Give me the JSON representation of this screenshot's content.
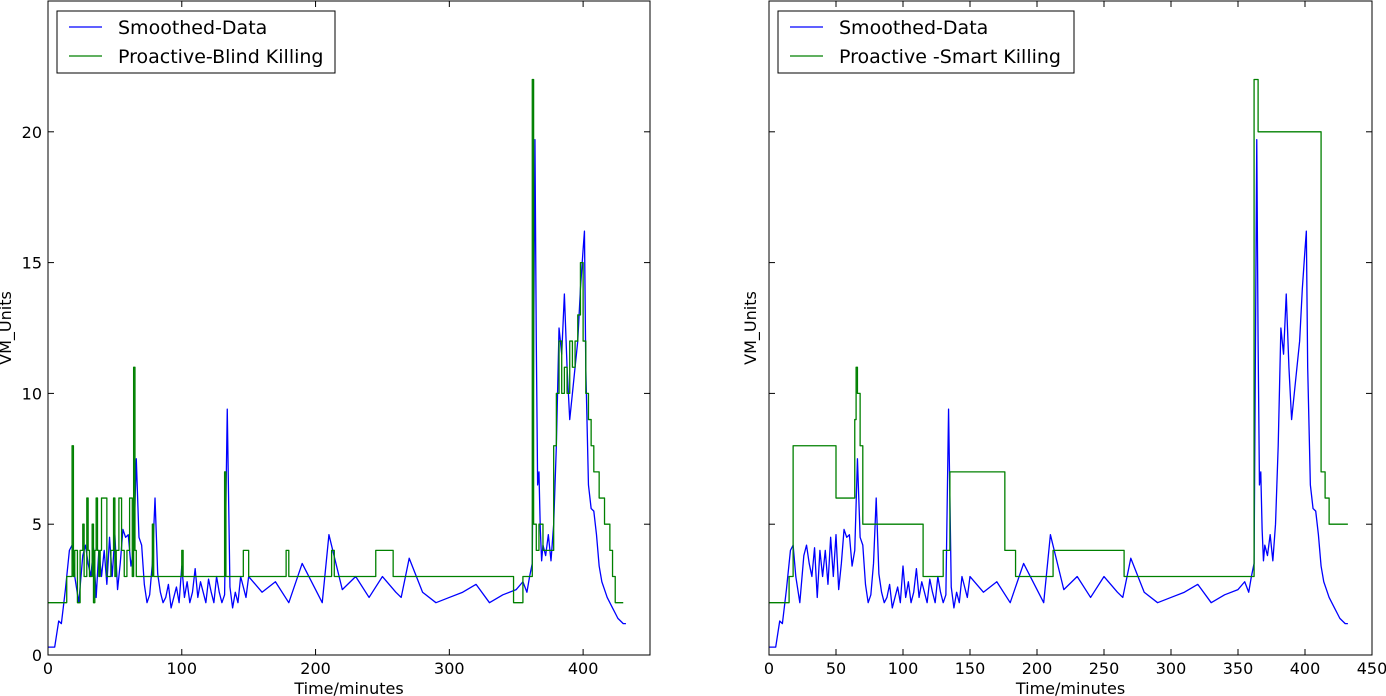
{
  "chart_data": [
    {
      "type": "line",
      "xlabel": "Time/minutes",
      "ylabel": "VM_Units",
      "xlim": [
        0,
        450
      ],
      "ylim": [
        0,
        25
      ],
      "xticks": [
        0,
        100,
        200,
        300,
        400
      ],
      "yticks": [
        0,
        5,
        10,
        15,
        20
      ],
      "show_y_tick_labels": true,
      "legend": "top-left",
      "grid": false,
      "series": [
        {
          "name": "Smoothed-Data",
          "color": "#0000ff",
          "x": [
            0,
            5,
            8,
            10,
            13,
            16,
            18,
            20,
            23,
            26,
            28,
            30,
            32,
            34,
            36,
            38,
            40,
            42,
            44,
            46,
            48,
            50,
            52,
            54,
            56,
            58,
            60,
            62,
            64,
            66,
            68,
            70,
            72,
            74,
            76,
            78,
            80,
            82,
            84,
            86,
            88,
            90,
            92,
            94,
            96,
            98,
            100,
            102,
            104,
            106,
            108,
            110,
            112,
            114,
            116,
            118,
            120,
            122,
            124,
            126,
            128,
            130,
            132,
            134,
            136,
            138,
            140,
            142,
            144,
            146,
            148,
            150,
            160,
            170,
            180,
            190,
            200,
            205,
            210,
            220,
            230,
            240,
            250,
            260,
            264,
            270,
            280,
            290,
            300,
            310,
            320,
            330,
            340,
            350,
            355,
            358,
            360,
            362,
            364,
            365,
            366,
            367,
            368,
            369,
            370,
            372,
            374,
            376,
            378,
            380,
            382,
            384,
            386,
            388,
            390,
            392,
            394,
            396,
            398,
            400,
            401,
            402,
            404,
            406,
            408,
            410,
            412,
            414,
            416,
            418,
            420,
            422,
            424,
            426,
            428,
            430,
            432
          ],
          "y": [
            0.3,
            0.3,
            1.3,
            1.2,
            2.5,
            4.0,
            4.2,
            3.0,
            2.0,
            3.8,
            4.2,
            3.5,
            3.0,
            4.1,
            2.2,
            4.0,
            3.0,
            4.0,
            2.7,
            4.5,
            3.0,
            4.6,
            2.5,
            3.5,
            4.8,
            4.5,
            4.6,
            3.4,
            4.0,
            7.5,
            4.5,
            4.2,
            2.7,
            2.0,
            2.3,
            3.5,
            6.0,
            3.1,
            2.4,
            2.0,
            2.2,
            2.7,
            1.8,
            2.2,
            2.6,
            2.0,
            3.4,
            2.2,
            2.8,
            2.0,
            2.4,
            3.3,
            2.2,
            2.8,
            2.4,
            2.0,
            2.9,
            2.4,
            2.0,
            3.0,
            2.4,
            2.0,
            2.3,
            9.4,
            2.6,
            1.8,
            2.4,
            2.0,
            3.0,
            2.6,
            2.2,
            3.0,
            2.4,
            2.8,
            2.0,
            3.5,
            2.5,
            2.0,
            4.6,
            2.5,
            3.0,
            2.2,
            3.0,
            2.4,
            2.2,
            3.7,
            2.4,
            2.0,
            2.2,
            2.4,
            2.7,
            2.0,
            2.3,
            2.5,
            2.8,
            2.4,
            3.0,
            3.5,
            19.7,
            12.0,
            6.5,
            7.0,
            4.8,
            3.6,
            4.2,
            3.8,
            4.6,
            3.6,
            5.0,
            8.0,
            12.5,
            11.5,
            13.8,
            11.0,
            9.0,
            10.0,
            11.0,
            12.0,
            14.0,
            15.5,
            16.2,
            11.0,
            6.5,
            5.6,
            5.5,
            4.6,
            3.4,
            2.8,
            2.5,
            2.2,
            2.0,
            1.8,
            1.6,
            1.4,
            1.3,
            1.2,
            1.2
          ]
        },
        {
          "name": "Proactive-Blind Killing",
          "color": "#008000",
          "x": [
            0,
            14,
            14,
            18,
            18,
            19,
            19,
            20,
            20,
            22,
            22,
            24,
            24,
            26,
            26,
            27,
            27,
            29,
            29,
            30,
            30,
            31,
            31,
            33,
            33,
            34,
            34,
            35,
            35,
            36,
            36,
            37,
            37,
            38,
            38,
            39,
            39,
            40,
            40,
            44,
            44,
            47,
            47,
            49,
            49,
            50,
            50,
            51,
            51,
            53,
            53,
            55,
            55,
            57,
            57,
            59,
            59,
            61,
            61,
            63,
            63,
            64,
            64,
            65,
            65,
            66,
            66,
            68,
            68,
            69,
            69,
            78,
            78,
            79,
            79,
            80,
            80,
            100,
            100,
            101,
            101,
            102,
            102,
            132,
            132,
            133,
            133,
            134,
            134,
            146,
            146,
            150,
            150,
            178,
            178,
            180,
            180,
            212,
            212,
            214,
            214,
            245,
            245,
            258,
            258,
            348,
            348,
            355,
            355,
            362,
            362,
            363,
            363,
            365,
            365,
            367,
            367,
            370,
            370,
            378,
            378,
            380,
            380,
            382,
            382,
            384,
            384,
            386,
            386,
            388,
            388,
            390,
            390,
            392,
            392,
            394,
            394,
            396,
            396,
            398,
            398,
            400,
            400,
            402,
            402,
            404,
            404,
            406,
            406,
            408,
            408,
            412,
            412,
            416,
            416,
            420,
            420,
            422,
            422,
            424,
            424,
            426,
            426,
            430,
            430
          ],
          "y": [
            2,
            2,
            3,
            3,
            8,
            8,
            3,
            3,
            4,
            4,
            2,
            2,
            4,
            4,
            5,
            5,
            3,
            3,
            6,
            6,
            4,
            4,
            3,
            3,
            5,
            5,
            2,
            2,
            4,
            4,
            6,
            6,
            4,
            4,
            3,
            3,
            4,
            4,
            6,
            6,
            3,
            3,
            4,
            4,
            6,
            6,
            3,
            3,
            4,
            4,
            6,
            6,
            4,
            4,
            3,
            3,
            4,
            4,
            6,
            6,
            3,
            3,
            11,
            11,
            4,
            4,
            3,
            3,
            3,
            3,
            3,
            3,
            5,
            5,
            3,
            3,
            3,
            3,
            4,
            4,
            3,
            3,
            3,
            3,
            7,
            7,
            3,
            3,
            3,
            3,
            4,
            4,
            3,
            3,
            4,
            4,
            3,
            3,
            4,
            4,
            3,
            3,
            4,
            4,
            3,
            3,
            2,
            2,
            3,
            3,
            22,
            22,
            5,
            5,
            4,
            4,
            5,
            5,
            4,
            4,
            8,
            8,
            10,
            10,
            12,
            12,
            10,
            10,
            11,
            11,
            10,
            10,
            12,
            12,
            11,
            11,
            12,
            12,
            13,
            13,
            15,
            15,
            12,
            12,
            10,
            10,
            9,
            9,
            8,
            8,
            7,
            7,
            6,
            6,
            5,
            5,
            4,
            4,
            3,
            3,
            2,
            2,
            2,
            2,
            2
          ]
        }
      ]
    },
    {
      "type": "line",
      "xlabel": "Time/minutes",
      "ylabel": "VM_Units",
      "xlim": [
        0,
        450
      ],
      "ylim": [
        0,
        25
      ],
      "xticks": [
        0,
        50,
        100,
        150,
        200,
        250,
        300,
        350,
        400,
        450
      ],
      "yticks": [
        0,
        5,
        10,
        15,
        20
      ],
      "show_y_tick_labels": false,
      "legend": "top-left",
      "grid": false,
      "series": [
        {
          "name": "Smoothed-Data",
          "color": "#0000ff",
          "x": [
            0,
            5,
            8,
            10,
            13,
            16,
            18,
            20,
            23,
            26,
            28,
            30,
            32,
            34,
            36,
            38,
            40,
            42,
            44,
            46,
            48,
            50,
            52,
            54,
            56,
            58,
            60,
            62,
            64,
            66,
            68,
            70,
            72,
            74,
            76,
            78,
            80,
            82,
            84,
            86,
            88,
            90,
            92,
            94,
            96,
            98,
            100,
            102,
            104,
            106,
            108,
            110,
            112,
            114,
            116,
            118,
            120,
            122,
            124,
            126,
            128,
            130,
            132,
            134,
            136,
            138,
            140,
            142,
            144,
            146,
            148,
            150,
            160,
            170,
            180,
            190,
            200,
            205,
            210,
            220,
            230,
            240,
            250,
            260,
            264,
            270,
            280,
            290,
            300,
            310,
            320,
            330,
            340,
            350,
            355,
            358,
            360,
            362,
            364,
            365,
            366,
            367,
            368,
            369,
            370,
            372,
            374,
            376,
            378,
            380,
            382,
            384,
            386,
            388,
            390,
            392,
            394,
            396,
            398,
            400,
            401,
            402,
            404,
            406,
            408,
            410,
            412,
            414,
            416,
            418,
            420,
            422,
            424,
            426,
            428,
            430,
            432
          ],
          "y": [
            0.3,
            0.3,
            1.3,
            1.2,
            2.5,
            4.0,
            4.2,
            3.0,
            2.0,
            3.8,
            4.2,
            3.5,
            3.0,
            4.1,
            2.2,
            4.0,
            3.0,
            4.0,
            2.7,
            4.5,
            3.0,
            4.6,
            2.5,
            3.5,
            4.8,
            4.5,
            4.6,
            3.4,
            4.0,
            7.5,
            4.5,
            4.2,
            2.7,
            2.0,
            2.3,
            3.5,
            6.0,
            3.1,
            2.4,
            2.0,
            2.2,
            2.7,
            1.8,
            2.2,
            2.6,
            2.0,
            3.4,
            2.2,
            2.8,
            2.0,
            2.4,
            3.3,
            2.2,
            2.8,
            2.4,
            2.0,
            2.9,
            2.4,
            2.0,
            3.0,
            2.4,
            2.0,
            2.3,
            9.4,
            2.6,
            1.8,
            2.4,
            2.0,
            3.0,
            2.6,
            2.2,
            3.0,
            2.4,
            2.8,
            2.0,
            3.5,
            2.5,
            2.0,
            4.6,
            2.5,
            3.0,
            2.2,
            3.0,
            2.4,
            2.2,
            3.7,
            2.4,
            2.0,
            2.2,
            2.4,
            2.7,
            2.0,
            2.3,
            2.5,
            2.8,
            2.4,
            3.0,
            3.5,
            19.7,
            12.0,
            6.5,
            7.0,
            4.8,
            3.6,
            4.2,
            3.8,
            4.6,
            3.6,
            5.0,
            8.0,
            12.5,
            11.5,
            13.8,
            11.0,
            9.0,
            10.0,
            11.0,
            12.0,
            14.0,
            15.5,
            16.2,
            11.0,
            6.5,
            5.6,
            5.5,
            4.6,
            3.4,
            2.8,
            2.5,
            2.2,
            2.0,
            1.8,
            1.6,
            1.4,
            1.3,
            1.2,
            1.2
          ]
        },
        {
          "name": "Proactive -Smart Killing",
          "color": "#008000",
          "x": [
            0,
            15,
            15,
            18,
            18,
            50,
            50,
            64,
            64,
            65,
            65,
            66,
            66,
            68,
            68,
            70,
            70,
            115,
            115,
            130,
            130,
            135,
            135,
            176,
            176,
            184,
            184,
            212,
            212,
            243,
            243,
            265,
            265,
            362,
            362,
            365,
            365,
            412,
            412,
            415,
            415,
            418,
            418,
            432
          ],
          "y": [
            2,
            2,
            3,
            3,
            8,
            8,
            6,
            6,
            9,
            9,
            11,
            11,
            10,
            10,
            8,
            8,
            5,
            5,
            3,
            3,
            4,
            4,
            7,
            7,
            4,
            4,
            3,
            3,
            4,
            4,
            4,
            4,
            3,
            3,
            22,
            22,
            20,
            20,
            7,
            7,
            6,
            6,
            5,
            5
          ]
        }
      ]
    }
  ]
}
